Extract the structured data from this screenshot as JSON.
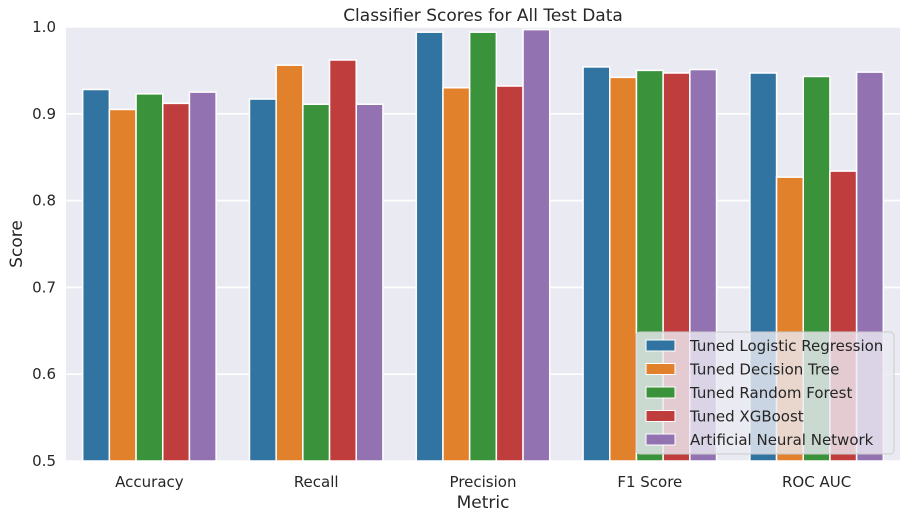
{
  "chart_data": {
    "type": "bar",
    "title": "Classifier Scores for All Test Data",
    "xlabel": "Metric",
    "ylabel": "Score",
    "ylim": [
      0.5,
      1.0
    ],
    "yticks": [
      "0.5",
      "0.6",
      "0.7",
      "0.8",
      "0.9",
      "1.0"
    ],
    "grid": true,
    "legend_position": "bottom-right",
    "categories": [
      "Accuracy",
      "Recall",
      "Precision",
      "F1 Score",
      "ROC AUC"
    ],
    "series": [
      {
        "name": "Tuned Logistic Regression",
        "color": "#3274a1",
        "values": [
          0.928,
          0.917,
          0.994,
          0.954,
          0.947
        ]
      },
      {
        "name": "Tuned Decision Tree",
        "color": "#e1812c",
        "values": [
          0.905,
          0.956,
          0.93,
          0.942,
          0.827
        ]
      },
      {
        "name": "Tuned Random Forest",
        "color": "#3a923a",
        "values": [
          0.923,
          0.911,
          0.994,
          0.95,
          0.943
        ]
      },
      {
        "name": "Tuned XGBoost",
        "color": "#c03d3e",
        "values": [
          0.912,
          0.962,
          0.932,
          0.947,
          0.834
        ]
      },
      {
        "name": "Artificial Neural Network",
        "color": "#9372b2",
        "values": [
          0.925,
          0.911,
          0.997,
          0.951,
          0.948
        ]
      }
    ],
    "plot_background": "#eaeaf2",
    "grid_color": "#ffffff"
  }
}
